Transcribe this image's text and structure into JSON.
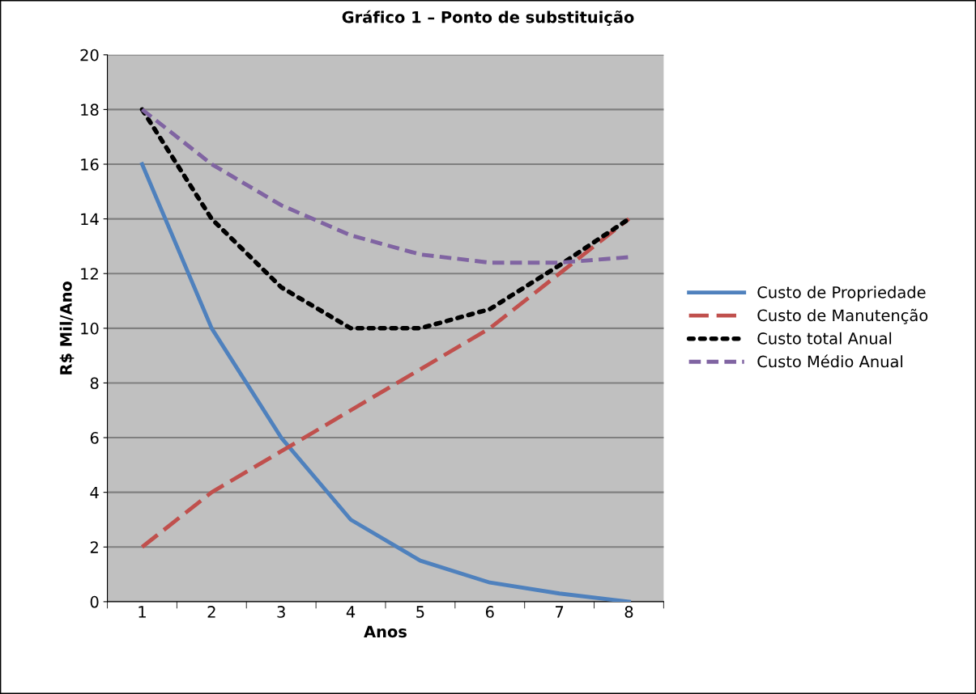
{
  "chart_data": {
    "type": "line",
    "title": "Gráfico 1 – Ponto de substituição",
    "xlabel": "Anos",
    "ylabel": "R$ Mil/Ano",
    "categories": [
      "1",
      "2",
      "3",
      "4",
      "5",
      "6",
      "7",
      "8"
    ],
    "series": [
      {
        "name": "Custo de Propriedade",
        "color": "#4f81bd",
        "line_style": "solid",
        "values": [
          16,
          10,
          6,
          3,
          1.5,
          0.7,
          0.3,
          0
        ]
      },
      {
        "name": "Custo de Manutenção",
        "color": "#c0504d",
        "line_style": "dashed",
        "values": [
          2,
          4,
          5.5,
          7,
          8.5,
          10,
          12,
          14
        ]
      },
      {
        "name": "Custo total Anual",
        "color": "#000000",
        "line_style": "dotted",
        "values": [
          18,
          14,
          11.5,
          10,
          10,
          10.7,
          12.3,
          14
        ]
      },
      {
        "name": "Custo Médio Anual",
        "color": "#8064a2",
        "line_style": "dashed",
        "values": [
          18,
          16,
          14.5,
          13.4,
          12.7,
          12.4,
          12.4,
          12.6
        ]
      }
    ],
    "ylim": [
      0,
      20
    ],
    "yticks": [
      0,
      2,
      4,
      6,
      8,
      10,
      12,
      14,
      16,
      18,
      20
    ],
    "grid": "y",
    "legend": "right",
    "marker": "none"
  }
}
